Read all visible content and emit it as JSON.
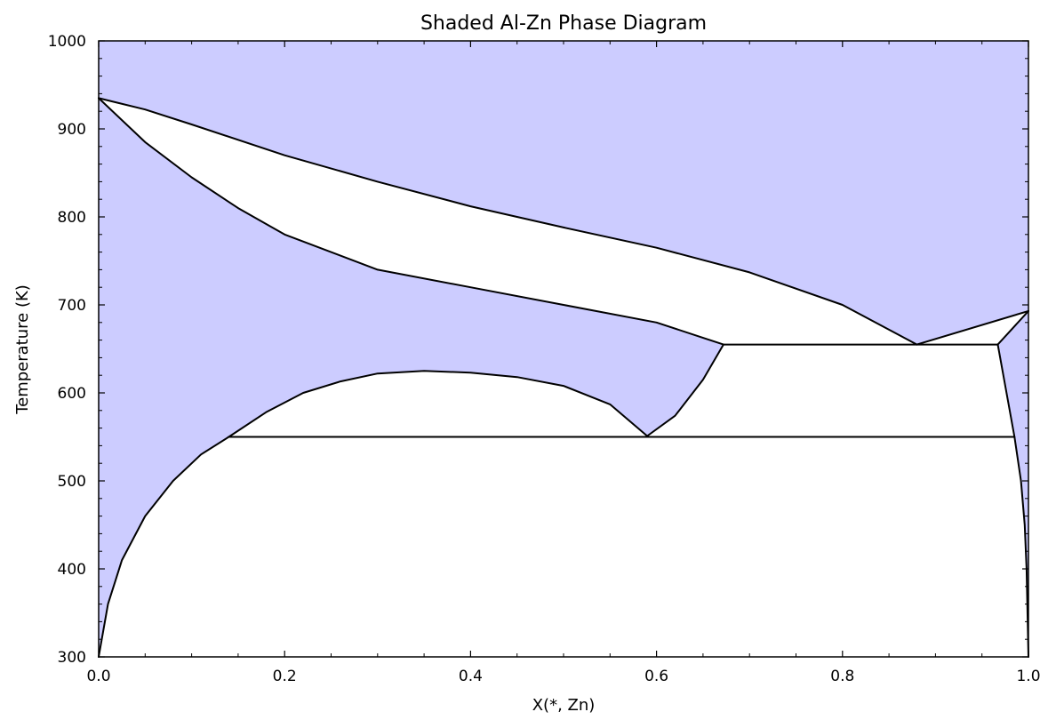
{
  "chart_data": {
    "type": "area",
    "title": "Shaded Al-Zn Phase Diagram",
    "xlabel": "X(*, Zn)",
    "ylabel": "Temperature (K)",
    "xlim": [
      0.0,
      1.0
    ],
    "ylim": [
      300,
      1000
    ],
    "x_ticks": [
      0.0,
      0.2,
      0.4,
      0.6,
      0.8,
      1.0
    ],
    "x_tick_labels": [
      "0.0",
      "0.2",
      "0.4",
      "0.6",
      "0.8",
      "1.0"
    ],
    "y_ticks": [
      300,
      400,
      500,
      600,
      700,
      800,
      900,
      1000
    ],
    "y_tick_labels": [
      "300",
      "400",
      "500",
      "600",
      "700",
      "800",
      "900",
      "1000"
    ],
    "grid": false,
    "legend": "none",
    "single_phase_fill_color": "#ccccff",
    "boundary_color": "#000000",
    "two_phase_regions": [
      {
        "region": "liquidus-solidus",
        "polygon": [
          [
            0.0,
            935
          ],
          [
            0.05,
            922
          ],
          [
            0.1,
            905
          ],
          [
            0.2,
            870
          ],
          [
            0.3,
            840
          ],
          [
            0.4,
            812
          ],
          [
            0.5,
            788
          ],
          [
            0.6,
            765
          ],
          [
            0.7,
            737
          ],
          [
            0.8,
            700
          ],
          [
            0.88,
            655
          ],
          [
            0.672,
            655
          ],
          [
            0.6,
            680
          ],
          [
            0.5,
            700
          ],
          [
            0.4,
            720
          ],
          [
            0.3,
            740
          ],
          [
            0.2,
            780
          ],
          [
            0.15,
            810
          ],
          [
            0.1,
            845
          ],
          [
            0.05,
            885
          ],
          [
            0.0,
            935
          ]
        ]
      },
      {
        "region": "liquid-eutectic-right",
        "polygon": [
          [
            0.88,
            655
          ],
          [
            1.0,
            693
          ],
          [
            0.967,
            655
          ]
        ]
      },
      {
        "region": "miscibility-gap",
        "polygon": [
          [
            0.14,
            550
          ],
          [
            0.18,
            578
          ],
          [
            0.22,
            600
          ],
          [
            0.26,
            613
          ],
          [
            0.3,
            622
          ],
          [
            0.35,
            625
          ],
          [
            0.4,
            623
          ],
          [
            0.45,
            618
          ],
          [
            0.5,
            608
          ],
          [
            0.55,
            587
          ],
          [
            0.59,
            551
          ]
        ]
      },
      {
        "region": "fcc-hcp",
        "polygon": [
          [
            0.59,
            551
          ],
          [
            0.62,
            574
          ],
          [
            0.65,
            615
          ],
          [
            0.672,
            655
          ],
          [
            0.967,
            655
          ],
          [
            0.985,
            550
          ]
        ]
      },
      {
        "region": "low-temperature-two-phase",
        "polygon": [
          [
            0.0,
            300
          ],
          [
            0.01,
            360
          ],
          [
            0.025,
            410
          ],
          [
            0.05,
            460
          ],
          [
            0.08,
            500
          ],
          [
            0.11,
            530
          ],
          [
            0.14,
            550
          ],
          [
            0.985,
            550
          ],
          [
            0.992,
            500
          ],
          [
            0.996,
            450
          ],
          [
            0.998,
            400
          ],
          [
            1.0,
            300
          ]
        ]
      }
    ],
    "boundaries": [
      {
        "name": "liquidus",
        "points": [
          [
            0.0,
            935
          ],
          [
            0.05,
            922
          ],
          [
            0.1,
            905
          ],
          [
            0.2,
            870
          ],
          [
            0.3,
            840
          ],
          [
            0.4,
            812
          ],
          [
            0.5,
            788
          ],
          [
            0.6,
            765
          ],
          [
            0.7,
            737
          ],
          [
            0.8,
            700
          ],
          [
            0.88,
            655
          ]
        ]
      },
      {
        "name": "solidus",
        "points": [
          [
            0.0,
            935
          ],
          [
            0.05,
            885
          ],
          [
            0.1,
            845
          ],
          [
            0.15,
            810
          ],
          [
            0.2,
            780
          ],
          [
            0.3,
            740
          ],
          [
            0.4,
            720
          ],
          [
            0.5,
            700
          ],
          [
            0.6,
            680
          ],
          [
            0.672,
            655
          ]
        ]
      },
      {
        "name": "liquidus-right",
        "points": [
          [
            0.88,
            655
          ],
          [
            1.0,
            693
          ]
        ]
      },
      {
        "name": "solidus-right",
        "points": [
          [
            1.0,
            693
          ],
          [
            0.967,
            655
          ]
        ]
      },
      {
        "name": "eutectic-line",
        "points": [
          [
            0.672,
            655
          ],
          [
            0.967,
            655
          ]
        ]
      },
      {
        "name": "miscibility-gap-dome",
        "points": [
          [
            0.14,
            550
          ],
          [
            0.18,
            578
          ],
          [
            0.22,
            600
          ],
          [
            0.26,
            613
          ],
          [
            0.3,
            622
          ],
          [
            0.35,
            625
          ],
          [
            0.4,
            623
          ],
          [
            0.45,
            618
          ],
          [
            0.5,
            608
          ],
          [
            0.55,
            587
          ],
          [
            0.59,
            551
          ]
        ]
      },
      {
        "name": "fcc-solvus",
        "points": [
          [
            0.59,
            551
          ],
          [
            0.62,
            574
          ],
          [
            0.65,
            615
          ],
          [
            0.672,
            655
          ]
        ]
      },
      {
        "name": "hcp-solvus",
        "points": [
          [
            0.967,
            655
          ],
          [
            0.985,
            550
          ],
          [
            0.992,
            500
          ],
          [
            0.996,
            450
          ],
          [
            0.998,
            400
          ],
          [
            1.0,
            300
          ]
        ]
      },
      {
        "name": "monotectoid-line",
        "points": [
          [
            0.14,
            550
          ],
          [
            0.985,
            550
          ]
        ]
      },
      {
        "name": "al-solvus",
        "points": [
          [
            0.0,
            300
          ],
          [
            0.01,
            360
          ],
          [
            0.025,
            410
          ],
          [
            0.05,
            460
          ],
          [
            0.08,
            500
          ],
          [
            0.11,
            530
          ],
          [
            0.14,
            550
          ]
        ]
      }
    ]
  }
}
